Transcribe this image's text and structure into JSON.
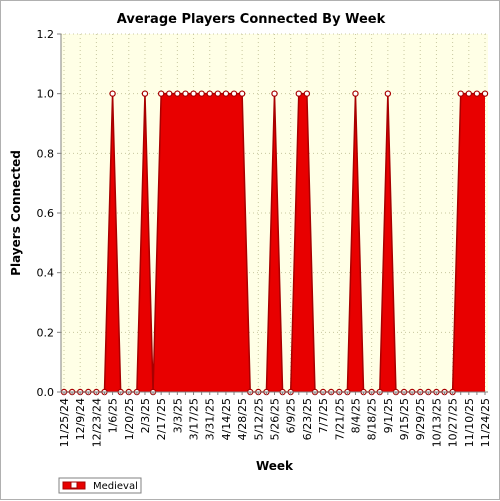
{
  "chart_data": {
    "type": "area",
    "title": "Average Players Connected By Week",
    "xlabel": "Week",
    "ylabel": "Players Connected",
    "ylim": [
      0,
      1.2
    ],
    "yticks": [
      "0.0",
      "0.2",
      "0.4",
      "0.6",
      "0.8",
      "1.0",
      "1.2"
    ],
    "grid": true,
    "legend_position": "bottom-left",
    "x": [
      "11/25/24",
      "12/2/24",
      "12/9/24",
      "12/16/24",
      "12/23/24",
      "12/30/24",
      "1/6/25",
      "1/13/25",
      "1/20/25",
      "1/27/25",
      "2/3/25",
      "2/10/25",
      "2/17/25",
      "2/24/25",
      "3/3/25",
      "3/10/25",
      "3/17/25",
      "3/24/25",
      "3/31/25",
      "4/7/25",
      "4/14/25",
      "4/21/25",
      "4/28/25",
      "5/5/25",
      "5/12/25",
      "5/19/25",
      "5/26/25",
      "6/2/25",
      "6/9/25",
      "6/16/25",
      "6/23/25",
      "6/30/25",
      "7/7/25",
      "7/14/25",
      "7/21/25",
      "7/28/25",
      "8/4/25",
      "8/11/25",
      "8/18/25",
      "8/25/25",
      "9/1/25",
      "9/8/25",
      "9/15/25",
      "9/22/25",
      "9/29/25",
      "10/6/25",
      "10/13/25",
      "10/20/25",
      "10/27/25",
      "11/3/25",
      "11/10/25",
      "11/17/25",
      "11/24/25"
    ],
    "xtick_labels": [
      "11/25/24",
      "12/9/24",
      "12/23/24",
      "1/6/25",
      "1/20/25",
      "2/3/25",
      "2/17/25",
      "3/3/25",
      "3/17/25",
      "3/31/25",
      "4/14/25",
      "4/28/25",
      "5/12/25",
      "5/26/25",
      "6/9/25",
      "6/23/25",
      "7/7/25",
      "7/21/25",
      "8/4/25",
      "8/18/25",
      "9/1/25",
      "9/15/25",
      "9/29/25",
      "10/13/25",
      "10/27/25",
      "11/10/25",
      "11/24/25"
    ],
    "series": [
      {
        "name": "Medieval",
        "color": "#e80000",
        "values": [
          0,
          0,
          0,
          0,
          0,
          0,
          1,
          0,
          0,
          0,
          1,
          0,
          1,
          1,
          1,
          1,
          1,
          1,
          1,
          1,
          1,
          1,
          1,
          0,
          0,
          0,
          1,
          0,
          0,
          1,
          1,
          0,
          0,
          0,
          0,
          0,
          1,
          0,
          0,
          0,
          1,
          0,
          0,
          0,
          0,
          0,
          0,
          0,
          0,
          1,
          1,
          1,
          1
        ]
      }
    ]
  },
  "colors": {
    "plot_background": "#ffffe6",
    "series_fill": "#e80000",
    "series_line": "#a80000"
  }
}
